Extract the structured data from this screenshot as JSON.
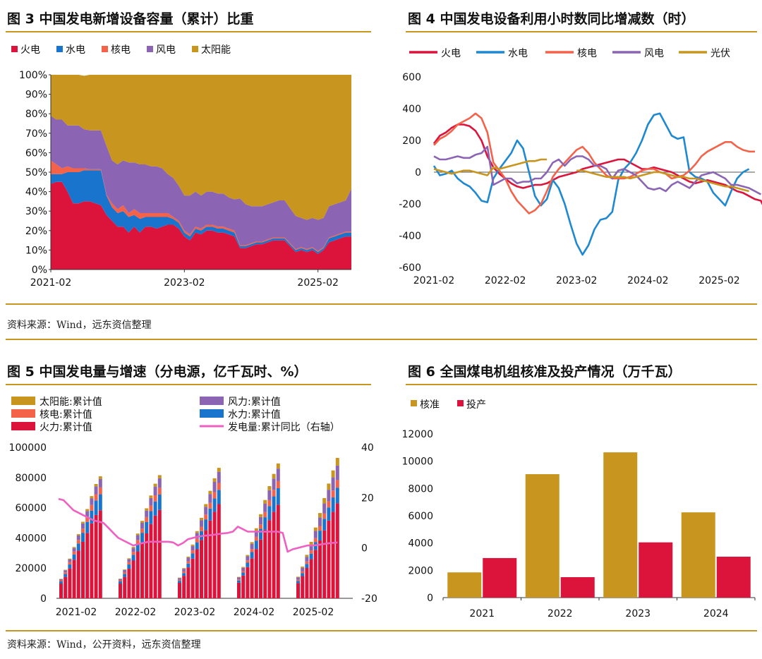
{
  "figure3": {
    "title": "图 3  中国发电新增设备容量（累计）比重",
    "legend": [
      "火电",
      "水电",
      "核电",
      "风电",
      "太阳能"
    ],
    "colors": [
      "#dc143c",
      "#1874cd",
      "#f4624a",
      "#8b64b4",
      "#c8961e"
    ]
  },
  "figure4": {
    "title": "图 4  中国发电设备利用小时数同比增减数（时）",
    "legend": [
      "火电",
      "水电",
      "核电",
      "风电",
      "光伏"
    ],
    "colors": [
      "#dc143c",
      "#1e88d0",
      "#f4624a",
      "#8b64b4",
      "#c8961e"
    ]
  },
  "figure5": {
    "title": "图 5  中国发电量与增速（分电源，亿千瓦时、%）",
    "legend": [
      "太阳能:累计值",
      "风力:累计值",
      "核电:累计值",
      "水力:累计值",
      "火力:累计值",
      "发电量:累计同比（右轴）"
    ],
    "colors": [
      "#c8961e",
      "#8b64b4",
      "#f4624a",
      "#1874cd",
      "#dc143c",
      "#f060c0"
    ]
  },
  "figure6": {
    "title": "图 6  全国煤电机组核准及投产情况（万千瓦）",
    "legend": [
      "核准",
      "投产"
    ],
    "colors": [
      "#c8961e",
      "#dc143c"
    ]
  },
  "sources": {
    "top": "资料来源：Wind，远东资信整理",
    "bottom": "资料来源：Wind，公开资料，远东资信整理"
  },
  "chart_data": [
    {
      "id": "fig3",
      "type": "area",
      "stacked": true,
      "percent": true,
      "title": "中国发电新增设备容量（累计）比重",
      "x_ticks": [
        "2021-02",
        "2023-02",
        "2025-02"
      ],
      "x_tick_index": [
        0,
        24,
        48
      ],
      "y_ticks": [
        "0%",
        "10%",
        "20%",
        "30%",
        "40%",
        "50%",
        "60%",
        "70%",
        "80%",
        "90%",
        "100%"
      ],
      "ylim": [
        0,
        100
      ],
      "series": [
        {
          "name": "火电",
          "values": [
            44,
            45,
            45,
            40,
            34,
            34,
            35,
            35,
            34,
            33,
            28,
            25,
            22,
            22,
            19,
            22,
            19,
            22,
            22,
            21,
            22,
            23,
            23,
            21,
            17,
            15,
            19,
            18,
            20,
            20,
            19,
            19,
            18,
            17,
            11,
            11,
            12,
            13,
            13,
            14,
            15,
            15,
            15,
            12,
            9,
            10,
            9,
            10,
            8,
            10,
            14,
            15,
            16,
            17,
            17
          ]
        },
        {
          "name": "水电",
          "values": [
            5,
            4,
            4,
            10,
            16,
            16,
            16,
            16,
            17,
            18,
            10,
            7,
            7,
            8,
            8,
            6,
            7,
            5,
            5,
            6,
            5,
            4,
            3,
            3,
            2,
            2,
            2,
            2,
            2,
            2,
            2,
            2,
            2,
            2,
            1,
            1,
            1,
            1,
            1,
            1,
            1,
            1,
            1,
            1,
            1,
            1,
            1,
            1,
            1,
            1,
            2,
            2,
            2,
            2,
            2
          ]
        },
        {
          "name": "核电",
          "values": [
            7,
            5,
            3,
            3,
            2,
            2,
            1,
            0.5,
            0.5,
            0.5,
            0.5,
            2,
            2,
            3,
            2,
            3,
            3,
            2,
            2,
            2,
            2,
            2,
            1,
            1,
            1,
            1,
            1,
            1,
            1,
            1,
            1,
            1,
            1,
            1,
            0.5,
            0.5,
            0.5,
            0.5,
            0.5,
            0.5,
            0.5,
            0.5,
            0.5,
            0.5,
            0.5,
            0.5,
            0.5,
            0.5,
            0.5,
            0.5,
            0.5,
            0.5,
            0.5,
            0.5,
            0.5
          ]
        },
        {
          "name": "风电",
          "values": [
            23,
            23,
            25,
            21,
            22,
            22,
            20,
            20,
            20,
            20,
            25,
            22,
            23,
            23,
            26,
            24,
            25,
            25,
            24,
            24,
            23,
            20,
            20,
            18,
            18,
            20,
            18,
            17,
            17,
            17,
            17,
            17,
            16,
            16,
            24,
            21,
            19,
            18,
            18,
            18,
            18,
            19,
            19,
            18,
            17,
            15,
            15,
            15,
            16,
            15,
            16,
            16,
            16,
            16,
            22
          ]
        },
        {
          "name": "太阳能",
          "values": [
            21,
            23,
            23,
            26,
            26,
            26,
            27.5,
            28.5,
            28.5,
            28.5,
            36.5,
            44,
            46,
            44,
            45,
            45,
            46,
            46,
            47,
            47,
            48,
            51,
            53,
            57,
            62,
            62,
            60,
            62,
            60,
            60,
            61,
            61,
            63,
            64,
            63.5,
            66.5,
            67.5,
            67.5,
            67.5,
            66.5,
            65.5,
            64.5,
            64.5,
            68.5,
            72.5,
            73.5,
            74.5,
            73.5,
            74.5,
            74.5,
            67.5,
            66.5,
            65.5,
            64.5,
            58.5
          ]
        }
      ]
    },
    {
      "id": "fig4",
      "type": "line",
      "title": "中国发电设备利用小时数同比增减数（时）",
      "x_ticks": [
        "2021-02",
        "2022-02",
        "2023-02",
        "2024-02",
        "2025-02"
      ],
      "x_tick_index": [
        0,
        12,
        24,
        36,
        48
      ],
      "ylim": [
        -600,
        600
      ],
      "y_ticks": [
        -600,
        -400,
        -200,
        0,
        200,
        400,
        600
      ],
      "series": [
        {
          "name": "火电",
          "values": [
            180,
            230,
            250,
            280,
            300,
            300,
            290,
            260,
            200,
            100,
            30,
            -10,
            -40,
            -70,
            -90,
            -100,
            -90,
            -80,
            -80,
            -70,
            -50,
            -30,
            -20,
            -10,
            0,
            20,
            30,
            40,
            50,
            60,
            70,
            80,
            80,
            60,
            40,
            20,
            20,
            30,
            20,
            10,
            0,
            -20,
            -40,
            -60,
            -70,
            -60,
            -50,
            -60,
            -70,
            -80,
            -100,
            -120,
            -130,
            -150,
            -170,
            -180,
            -260
          ]
        },
        {
          "name": "水电",
          "values": [
            40,
            -20,
            -10,
            10,
            -40,
            -70,
            -90,
            -130,
            -180,
            -190,
            -40,
            20,
            70,
            120,
            200,
            150,
            0,
            -150,
            -210,
            -170,
            -50,
            -100,
            -200,
            -330,
            -450,
            -520,
            -460,
            -360,
            -300,
            -290,
            -250,
            -50,
            20,
            60,
            120,
            200,
            300,
            360,
            370,
            300,
            230,
            210,
            220,
            0,
            -30,
            -40,
            -60,
            -130,
            -170,
            -210,
            -120,
            -40,
            0,
            20
          ]
        },
        {
          "name": "核电",
          "values": [
            170,
            210,
            230,
            260,
            300,
            320,
            340,
            370,
            340,
            250,
            60,
            10,
            -40,
            -120,
            -180,
            -220,
            -260,
            -240,
            -200,
            -120,
            -30,
            20,
            60,
            100,
            140,
            160,
            120,
            60,
            20,
            -20,
            -40,
            -40,
            -40,
            -30,
            -10,
            10,
            20,
            20,
            0,
            -10,
            -40,
            -30,
            -20,
            10,
            50,
            100,
            130,
            150,
            170,
            190,
            190,
            160,
            140,
            130,
            130
          ]
        },
        {
          "name": "风电",
          "values": [
            100,
            80,
            80,
            90,
            100,
            90,
            90,
            110,
            120,
            160,
            -80,
            -60,
            -40,
            -40,
            -70,
            -60,
            -60,
            -40,
            -40,
            0,
            60,
            80,
            40,
            80,
            100,
            100,
            80,
            40,
            40,
            20,
            -40,
            10,
            20,
            0,
            -20,
            -60,
            -100,
            -110,
            -100,
            -120,
            -80,
            -60,
            -80,
            -100,
            -60,
            -20,
            -10,
            0,
            -20,
            -40,
            -80,
            -80,
            -90,
            -100,
            -120,
            -140
          ]
        },
        {
          "name": "光伏",
          "values": [
            20,
            10,
            0,
            -10,
            0,
            10,
            10,
            0,
            -10,
            -20,
            30,
            20,
            30,
            40,
            50,
            60,
            70,
            70,
            80,
            80,
            null,
            null,
            null,
            null,
            10,
            10,
            0,
            -10,
            -20,
            -30,
            -30,
            -30,
            -30,
            -40,
            -30,
            -20,
            -10,
            0,
            0,
            -10,
            -20,
            -30,
            -30,
            -40,
            -40,
            -50,
            -60,
            -70,
            -80,
            -90,
            -90,
            -100,
            -110,
            -120
          ]
        }
      ],
      "segments_note": "光伏 line is interrupted between the 2022 and 2023 segments"
    },
    {
      "id": "fig5",
      "type": "bar",
      "stacked": true,
      "title": "中国发电量与增速（分电源，亿千瓦时、%）",
      "x_ticks": [
        "2021-02",
        "2022-02",
        "2023-02",
        "2024-02",
        "2025-02"
      ],
      "y_left_lim": [
        0,
        100000
      ],
      "y_left_ticks": [
        0,
        20000,
        40000,
        60000,
        80000,
        100000
      ],
      "y_right_lim": [
        -20,
        40
      ],
      "y_right_ticks": [
        -20,
        0,
        20,
        40
      ],
      "years": [
        {
          "label": "2021",
          "火力": [
            9800,
            14200,
            19800,
            25600,
            31600,
            37400,
            43300,
            49600,
            55200,
            58300
          ],
          "水力": [
            1400,
            1900,
            2600,
            3500,
            4700,
            6000,
            7300,
            8500,
            9600,
            10600
          ],
          "核电": [
            700,
            1100,
            1500,
            1900,
            2400,
            2800,
            3300,
            3700,
            4100,
            4500
          ],
          "风力": [
            800,
            1300,
            1800,
            2300,
            2900,
            3400,
            3900,
            4500,
            5200,
            5600
          ],
          "太阳能": [
            200,
            400,
            600,
            700,
            900,
            1100,
            1300,
            1400,
            1600,
            1800
          ]
        },
        {
          "label": "2022",
          "火力": [
            9800,
            14200,
            19600,
            25000,
            31100,
            37000,
            43000,
            49200,
            54800,
            58500
          ],
          "水力": [
            1400,
            2000,
            2800,
            3800,
            5100,
            6400,
            7500,
            8500,
            9300,
            10200
          ],
          "核电": [
            700,
            1100,
            1500,
            1900,
            2400,
            2800,
            3300,
            3700,
            4100,
            4500
          ],
          "风力": [
            900,
            1400,
            2000,
            2600,
            3200,
            3800,
            4300,
            5000,
            5800,
            6300
          ],
          "太阳能": [
            200,
            400,
            600,
            800,
            1100,
            1300,
            1500,
            1700,
            1900,
            2100
          ]
        },
        {
          "label": "2023",
          "火力": [
            10300,
            14900,
            20500,
            26300,
            32500,
            38700,
            45200,
            51500,
            57400,
            62400
          ],
          "水力": [
            1300,
            1800,
            2500,
            3400,
            4600,
            5800,
            6900,
            7900,
            8700,
            9400
          ],
          "核电": [
            700,
            1100,
            1500,
            2000,
            2500,
            2900,
            3400,
            3800,
            4200,
            4600
          ],
          "风力": [
            1100,
            1700,
            2400,
            3000,
            3700,
            4400,
            5100,
            5900,
            6800,
            7400
          ],
          "太阳能": [
            300,
            500,
            700,
            900,
            1200,
            1500,
            1800,
            2100,
            2400,
            2600
          ]
        },
        {
          "label": "2024",
          "火力": [
            10400,
            15100,
            20700,
            26500,
            32600,
            38900,
            45400,
            51800,
            57400,
            62000
          ],
          "水力": [
            1400,
            2000,
            2900,
            4100,
            5600,
            7100,
            8300,
            9300,
            10100,
            10900
          ],
          "核电": [
            700,
            1100,
            1500,
            2000,
            2500,
            2900,
            3400,
            3900,
            4300,
            4700
          ],
          "风力": [
            1300,
            2000,
            2700,
            3400,
            4200,
            4900,
            5700,
            6600,
            7500,
            8300
          ],
          "太阳能": [
            400,
            600,
            900,
            1200,
            1500,
            1900,
            2300,
            2700,
            3100,
            3400
          ]
        },
        {
          "label": "2025",
          "火力": [
            10100,
            14700,
            20100,
            25900,
            32100,
            38300,
            45000,
            51500,
            57300,
            63000
          ],
          "水力": [
            1400,
            1900,
            2700,
            3700,
            5100,
            6500,
            7700,
            8700,
            9500,
            10300
          ],
          "核电": [
            800,
            1200,
            1600,
            2100,
            2600,
            3100,
            3600,
            4100,
            4600,
            5000
          ],
          "风力": [
            1500,
            2300,
            3100,
            3900,
            4800,
            5700,
            6600,
            7600,
            8700,
            9600
          ],
          "太阳能": [
            500,
            900,
            1300,
            1800,
            2300,
            2900,
            3500,
            4100,
            4600,
            5100
          ]
        }
      ],
      "yoy": {
        "name": "发电量:累计同比（右轴）",
        "values": [
          19.5,
          19,
          17,
          15,
          14,
          13,
          12,
          11,
          10.5,
          10,
          8,
          6,
          4,
          3,
          2,
          1,
          1.5,
          2,
          2.5,
          2.5,
          2.5,
          2.5,
          2.5,
          2.2,
          1,
          2,
          3.5,
          4,
          4.5,
          4.8,
          5,
          5.2,
          5.5,
          5.8,
          6,
          6.5,
          8.5,
          7.5,
          6.5,
          6.5,
          6.5,
          6.5,
          6.5,
          6.5,
          6.5,
          6,
          -1.5,
          -0.5,
          0,
          0.5,
          1,
          1,
          1.2,
          1.5,
          1.8,
          2,
          2.2
        ]
      }
    },
    {
      "id": "fig6",
      "type": "bar",
      "title": "全国煤电机组核准及投产情况（万千瓦）",
      "categories": [
        "2021",
        "2022",
        "2023",
        "2024"
      ],
      "ylim": [
        0,
        12000
      ],
      "y_ticks": [
        0,
        2000,
        4000,
        6000,
        8000,
        10000,
        12000
      ],
      "series": [
        {
          "name": "核准",
          "values": [
            1850,
            9050,
            10650,
            6250
          ]
        },
        {
          "name": "投产",
          "values": [
            2900,
            1500,
            4050,
            3000
          ]
        }
      ]
    }
  ]
}
